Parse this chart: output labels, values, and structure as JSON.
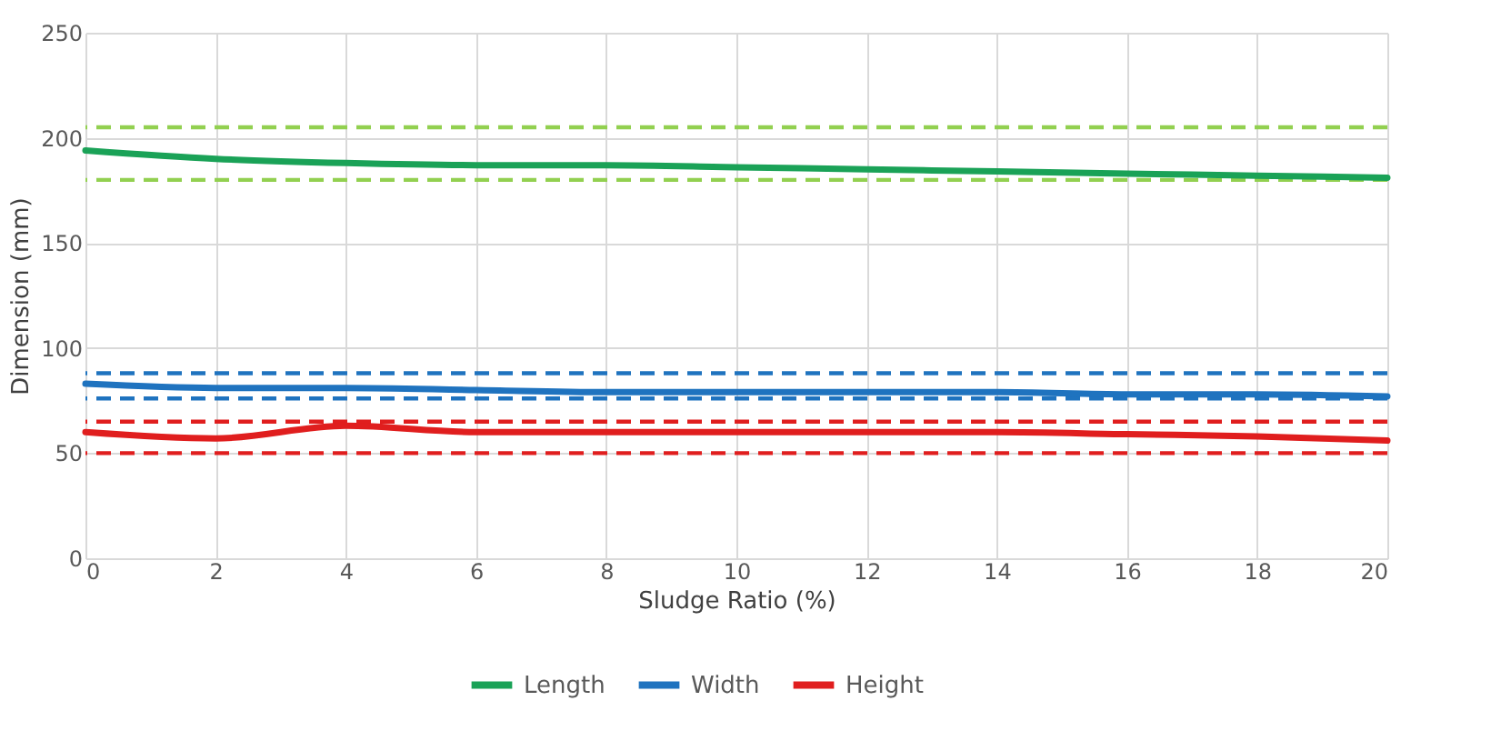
{
  "chart_data": {
    "type": "line",
    "xlabel": "Sludge Ratio (%)",
    "ylabel": "Dimension (mm)",
    "x": [
      0,
      2,
      4,
      6,
      8,
      10,
      12,
      14,
      16,
      18,
      20
    ],
    "series": [
      {
        "name": "Length",
        "color": "#1aa257",
        "values": [
          194,
          190,
          188,
          187,
          187,
          186,
          185,
          184,
          183,
          182,
          181
        ]
      },
      {
        "name": "Width",
        "color": "#1f73bf",
        "values": [
          83,
          81,
          81,
          80,
          79,
          79,
          79,
          79,
          78,
          78,
          77
        ]
      },
      {
        "name": "Height",
        "color": "#e01e1e",
        "values": [
          60,
          57,
          63,
          60,
          60,
          60,
          60,
          60,
          59,
          58,
          56
        ]
      }
    ],
    "ref_lines": [
      {
        "axis": "y",
        "value": 205,
        "color": "#92d050",
        "line_style": "dashed"
      },
      {
        "axis": "y",
        "value": 180,
        "color": "#92d050",
        "line_style": "dashed"
      },
      {
        "axis": "y",
        "value": 88,
        "color": "#1f73bf",
        "line_style": "dashed"
      },
      {
        "axis": "y",
        "value": 76,
        "color": "#1f73bf",
        "line_style": "dashed"
      },
      {
        "axis": "y",
        "value": 65,
        "color": "#e01e1e",
        "line_style": "dashed"
      },
      {
        "axis": "y",
        "value": 50,
        "color": "#e01e1e",
        "line_style": "dashed"
      }
    ],
    "xlim": [
      0,
      20
    ],
    "xticks": [
      0,
      2,
      4,
      6,
      8,
      10,
      12,
      14,
      16,
      18,
      20
    ],
    "ylim": [
      0,
      250
    ],
    "yticks": [
      0,
      50,
      100,
      150,
      200,
      250
    ],
    "grid": true,
    "legend": "bottom",
    "marker": "none",
    "line_style": "solid"
  }
}
